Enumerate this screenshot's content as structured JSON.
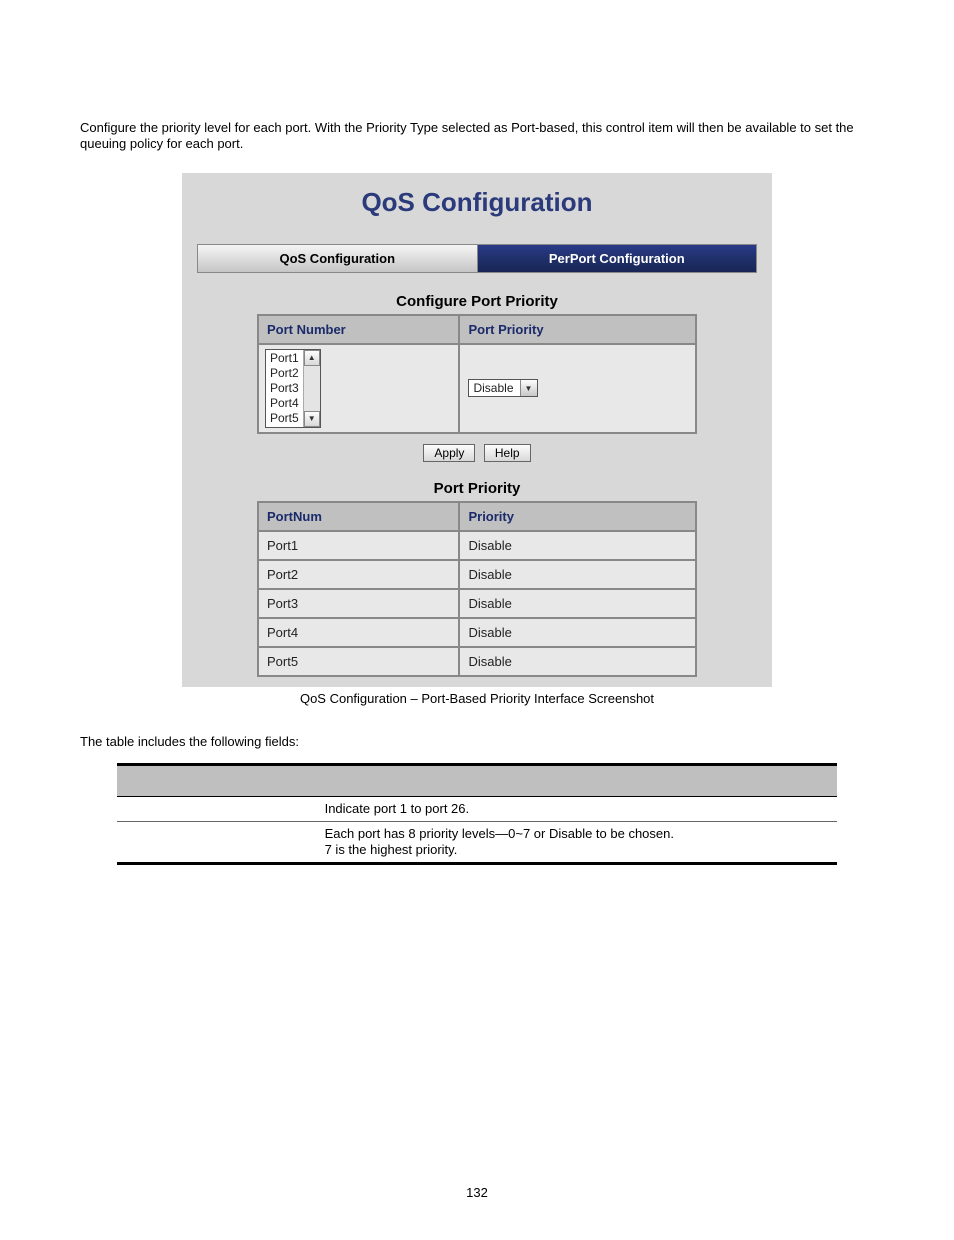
{
  "intro_text": "Configure the priority level for each port. With the Priority Type selected as Port-based, this control item will then be available to set the queuing policy for each port.",
  "screenshot": {
    "title": "QoS Configuration",
    "tabs": {
      "inactive": "QoS Configuration",
      "active": "PerPort Configuration"
    },
    "section1_title": "Configure Port Priority",
    "config_table": {
      "headers": [
        "Port Number",
        "Port Priority"
      ],
      "port_list": [
        "Port1",
        "Port2",
        "Port3",
        "Port4",
        "Port5"
      ],
      "priority_selected": "Disable"
    },
    "buttons": {
      "apply": "Apply",
      "help": "Help"
    },
    "section2_title": "Port Priority",
    "status_table": {
      "headers": [
        "PortNum",
        "Priority"
      ],
      "rows": [
        {
          "port": "Port1",
          "priority": "Disable"
        },
        {
          "port": "Port2",
          "priority": "Disable"
        },
        {
          "port": "Port3",
          "priority": "Disable"
        },
        {
          "port": "Port4",
          "priority": "Disable"
        },
        {
          "port": "Port5",
          "priority": "Disable"
        }
      ]
    }
  },
  "caption": "QoS Configuration – Port-Based Priority Interface Screenshot",
  "table_intro": "The table includes the following fields:",
  "definitions": [
    {
      "label": "",
      "desc": "Indicate port 1 to port 26."
    },
    {
      "label": "",
      "desc": "Each port has 8 priority levels—0~7 or Disable to be chosen.\n7 is the highest priority."
    }
  ],
  "page_number": "132"
}
